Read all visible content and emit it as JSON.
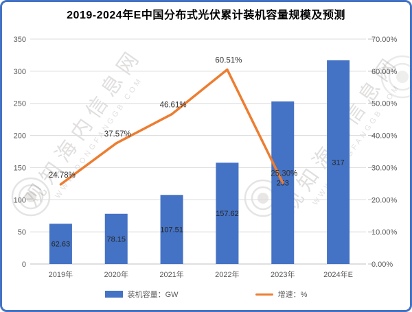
{
  "chart_data": {
    "type": "bar+line combo",
    "title": "2019-2024年E中国分布式光伏累计装机容量规模及预测",
    "categories": [
      "2019年",
      "2020年",
      "2021年",
      "2022年",
      "2023年",
      "2024年E"
    ],
    "series": [
      {
        "name": "装机容量：GW",
        "type": "bar",
        "axis": "left",
        "color": "#4472C4",
        "values": [
          62.63,
          78.15,
          107.51,
          157.62,
          253,
          317
        ],
        "labels": [
          "62.63",
          "78.15",
          "107.51",
          "157.62",
          "253",
          "317"
        ]
      },
      {
        "name": "增速：%",
        "type": "line",
        "axis": "right",
        "color": "#ED7D31",
        "values": [
          24.78,
          37.57,
          46.61,
          60.51,
          25.3,
          null
        ],
        "labels": [
          "24.78%",
          "37.57%",
          "46.61%",
          "60.51%",
          "25.30%",
          ""
        ]
      }
    ],
    "left_axis": {
      "min": 0,
      "max": 350,
      "step": 50,
      "ticks": [
        "0",
        "50",
        "100",
        "150",
        "200",
        "250",
        "300",
        "350"
      ]
    },
    "right_axis": {
      "min": 0,
      "max": 70,
      "step": 10,
      "ticks": [
        "0.00%",
        "10.00%",
        "20.00%",
        "30.00%",
        "40.00%",
        "50.00%",
        "60.00%",
        "70.00%"
      ]
    },
    "legend": [
      {
        "label": "装机容量：GW",
        "swatch": "bar",
        "color": "#4472C4"
      },
      {
        "label": "增速：%",
        "swatch": "line",
        "color": "#ED7D31"
      }
    ],
    "grid": true,
    "legend_position": "bottom"
  },
  "watermark": {
    "text": "观知海内信息网",
    "subtext": "WWW.DONGFANGGB.COM"
  },
  "colors": {
    "frame_border": "#4472C4",
    "bar": "#4472C4",
    "line": "#ED7D31",
    "gridline": "#DCDCDC",
    "axis_line": "#BFBFBF",
    "axis_text": "#595959",
    "data_label": "#333333"
  }
}
